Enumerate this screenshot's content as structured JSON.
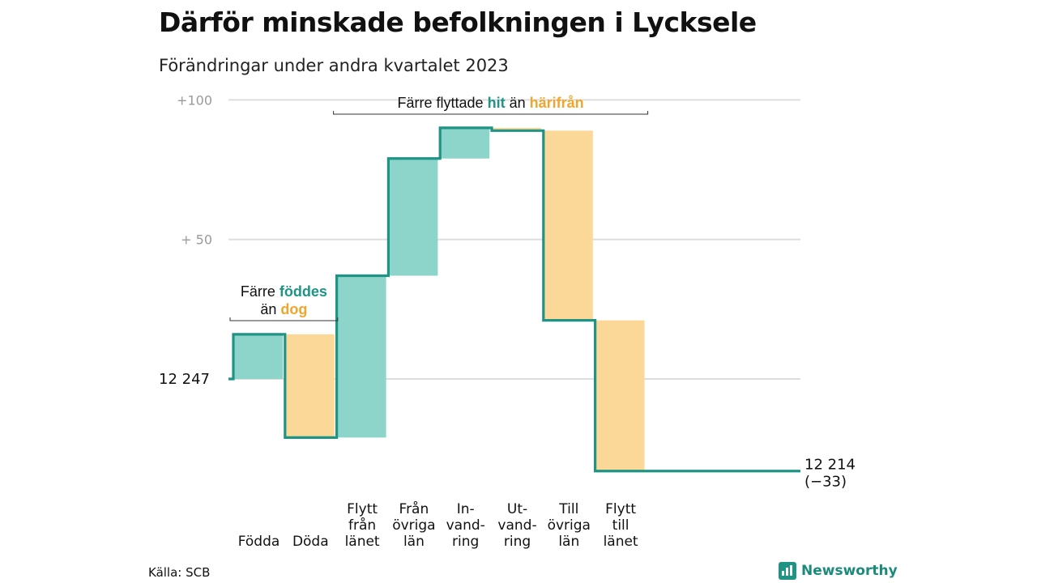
{
  "chart_data": {
    "type": "waterfall",
    "title": "Därför minskade befolkningen i Lycksele",
    "subtitle": "Förändringar under andra kvartalet 2023",
    "start_value": 12247,
    "start_label": "12  247",
    "end_value": 12214,
    "end_label": "12 214",
    "end_change_label": "(−33)",
    "y_tick_labels": [
      "+100",
      "+  50",
      ""
    ],
    "y_ticks": [
      100,
      50,
      0
    ],
    "ylim": [
      -34,
      104
    ],
    "categories": [
      {
        "label_lines": [
          "Födda"
        ],
        "value": 16
      },
      {
        "label_lines": [
          "Döda"
        ],
        "value": -37
      },
      {
        "label_lines": [
          "Flytt",
          "från",
          "länet"
        ],
        "value": 58
      },
      {
        "label_lines": [
          "Från",
          "övriga",
          "län"
        ],
        "value": 42
      },
      {
        "label_lines": [
          "In-",
          "vand-",
          "ring"
        ],
        "value": 11
      },
      {
        "label_lines": [
          "Ut-",
          "vand-",
          "ring"
        ],
        "value": -1
      },
      {
        "label_lines": [
          "Till",
          "övriga",
          "län"
        ],
        "value": -68
      },
      {
        "label_lines": [
          "Flytt",
          "till",
          "länet"
        ],
        "value": -54
      }
    ],
    "annotations": [
      {
        "type": "bracket",
        "from": 0,
        "to": 1,
        "lines": [
          [
            {
              "text": "Färre ",
              "style": "plain"
            },
            {
              "text": "föddes",
              "style": "pos"
            }
          ],
          [
            {
              "text": "än ",
              "style": "plain"
            },
            {
              "text": "dog",
              "style": "neg"
            }
          ]
        ]
      },
      {
        "type": "bracket",
        "from": 2,
        "to": 7,
        "lines": [
          [
            {
              "text": "Färre flyttade ",
              "style": "plain"
            },
            {
              "text": "hit",
              "style": "pos"
            },
            {
              "text": " än ",
              "style": "plain"
            },
            {
              "text": "härifrån",
              "style": "neg"
            }
          ]
        ]
      }
    ],
    "colors": {
      "positive": "#8dd5cb",
      "negative": "#fbd898",
      "line": "#1f9485",
      "grid": "#dddddd",
      "pos_text": "#1f9485",
      "neg_text": "#f0a62e"
    },
    "grid": true
  },
  "footer": {
    "source": "Källa: SCB",
    "brand": "Newsworthy"
  },
  "icons": {
    "brand_logo": "bar-chart-icon"
  }
}
